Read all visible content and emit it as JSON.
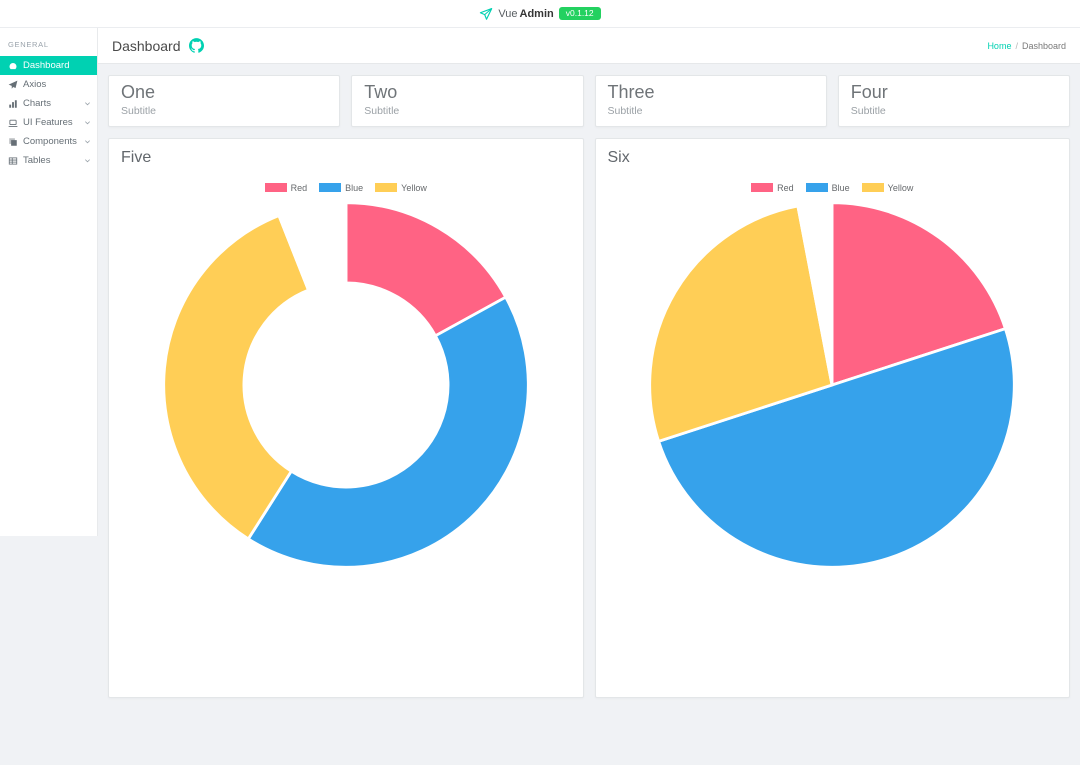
{
  "navbar": {
    "brand_vue": "Vue",
    "brand_admin": "Admin",
    "version_badge": "v0.1.12"
  },
  "sidebar": {
    "section_label": "GENERAL",
    "items": [
      {
        "label": "Dashboard",
        "icon": "tachometer-icon",
        "active": true,
        "has_submenu": false
      },
      {
        "label": "Axios",
        "icon": "paper-plane-icon",
        "active": false,
        "has_submenu": false
      },
      {
        "label": "Charts",
        "icon": "bar-chart-icon",
        "active": false,
        "has_submenu": true
      },
      {
        "label": "UI Features",
        "icon": "laptop-icon",
        "active": false,
        "has_submenu": true
      },
      {
        "label": "Components",
        "icon": "components-icon",
        "active": false,
        "has_submenu": true
      },
      {
        "label": "Tables",
        "icon": "table-icon",
        "active": false,
        "has_submenu": true
      }
    ]
  },
  "header": {
    "title": "Dashboard",
    "breadcrumb": {
      "home": "Home",
      "separator": "/",
      "current": "Dashboard"
    }
  },
  "stat_cards": [
    {
      "title": "One",
      "subtitle": "Subtitle"
    },
    {
      "title": "Two",
      "subtitle": "Subtitle"
    },
    {
      "title": "Three",
      "subtitle": "Subtitle"
    },
    {
      "title": "Four",
      "subtitle": "Subtitle"
    }
  ],
  "colors": {
    "accent_teal": "#00d1b2",
    "badge_green": "#23d160",
    "chart_red": "#ff6384",
    "chart_blue": "#36a2eb",
    "chart_yellow": "#ffce56"
  },
  "chart_data": [
    {
      "type": "doughnut",
      "title": "Five",
      "legend_position": "top",
      "legend": [
        "Red",
        "Blue",
        "Yellow"
      ],
      "start_angle_deg": 0,
      "cutout_ratio": 0.56,
      "segments": [
        {
          "label": "Red",
          "value": 17,
          "color": "#ff6384"
        },
        {
          "label": "Blue",
          "value": 42,
          "color": "#36a2eb"
        },
        {
          "label": "Yellow",
          "value": 35,
          "color": "#ffce56"
        },
        {
          "label": "",
          "value": 6,
          "color": "#ffffff"
        }
      ]
    },
    {
      "type": "pie",
      "title": "Six",
      "legend_position": "top",
      "legend": [
        "Red",
        "Blue",
        "Yellow"
      ],
      "start_angle_deg": 0,
      "cutout_ratio": 0,
      "segments": [
        {
          "label": "Red",
          "value": 20,
          "color": "#ff6384"
        },
        {
          "label": "Blue",
          "value": 50,
          "color": "#36a2eb"
        },
        {
          "label": "Yellow",
          "value": 27,
          "color": "#ffce56"
        },
        {
          "label": "",
          "value": 3,
          "color": "#ffffff"
        }
      ]
    }
  ]
}
